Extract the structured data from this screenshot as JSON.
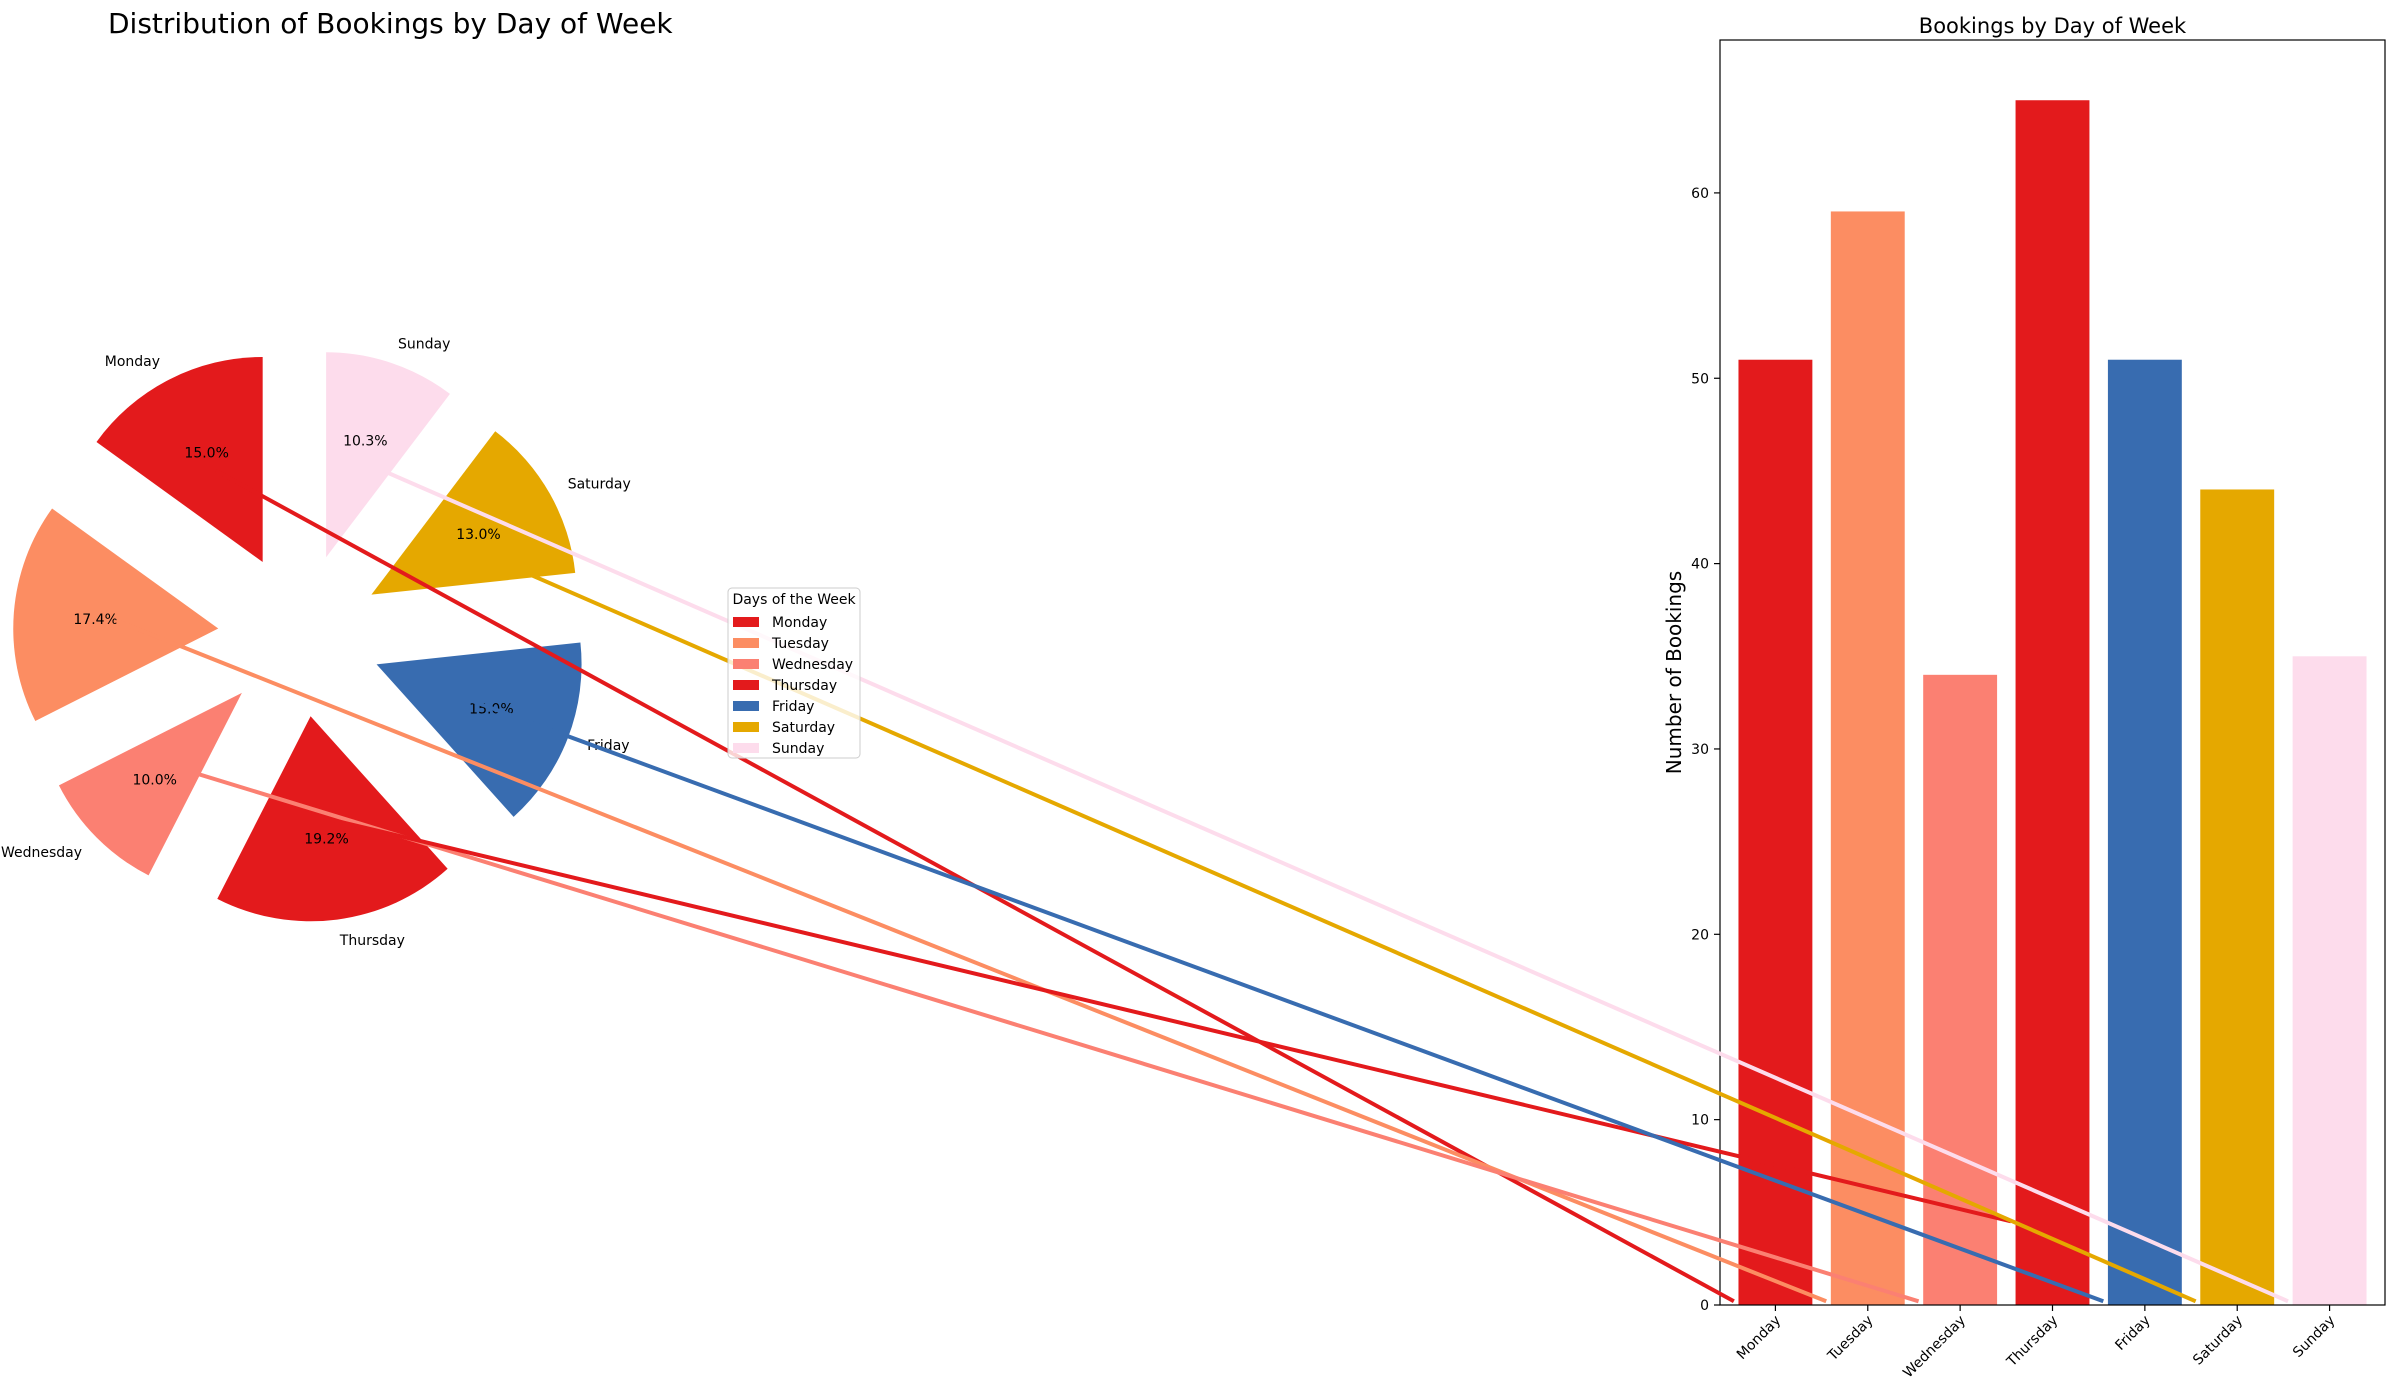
{
  "chart_data": [
    {
      "type": "pie",
      "title": "Distribution of Bookings by Day of Week",
      "categories": [
        "Monday",
        "Tuesday",
        "Wednesday",
        "Thursday",
        "Friday",
        "Saturday",
        "Sunday"
      ],
      "values": [
        51,
        59,
        34,
        65,
        51,
        44,
        35
      ],
      "percent_labels": [
        "15.0%",
        "17.4%",
        "10.0%",
        "19.2%",
        "15.0%",
        "13.0%",
        "10.3%"
      ],
      "colors": [
        "#e31a1c",
        "#fc8d62",
        "#fb8072",
        "#e31a1c",
        "#386cb0",
        "#e5a800",
        "#fddcec"
      ],
      "legend": {
        "title": "Days of the Week",
        "entries": [
          "Monday",
          "Tuesday",
          "Wednesday",
          "Thursday",
          "Friday",
          "Saturday",
          "Sunday"
        ],
        "placement": "center-right"
      }
    },
    {
      "type": "bar",
      "title": "Bookings by Day of Week",
      "categories": [
        "Monday",
        "Tuesday",
        "Wednesday",
        "Thursday",
        "Friday",
        "Saturday",
        "Sunday"
      ],
      "values": [
        51,
        59,
        34,
        65,
        51,
        44,
        35
      ],
      "colors": [
        "#e31a1c",
        "#fc8d62",
        "#fb8072",
        "#e31a1c",
        "#386cb0",
        "#e5a800",
        "#fddcec"
      ],
      "xlabel": "",
      "ylabel": "Number of Bookings",
      "ylim": [
        0,
        68.25
      ],
      "yticks": [
        0,
        10,
        20,
        30,
        40,
        50,
        60
      ],
      "grid": false
    }
  ]
}
